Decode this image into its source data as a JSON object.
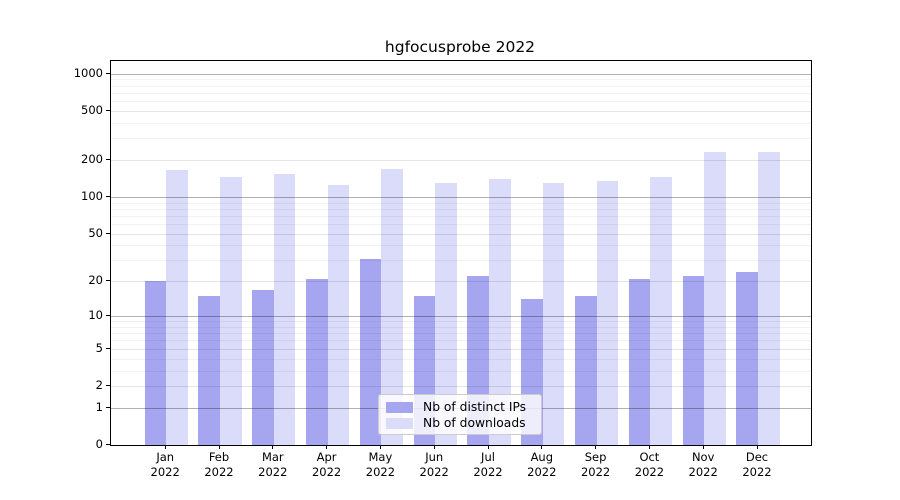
{
  "chart_data": {
    "type": "bar",
    "title": "hgfocusprobe 2022",
    "months": [
      "Jan",
      "Feb",
      "Mar",
      "Apr",
      "May",
      "Jun",
      "Jul",
      "Aug",
      "Sep",
      "Oct",
      "Nov",
      "Dec"
    ],
    "year_label": "2022",
    "categories": [
      "Jan 2022",
      "Feb 2022",
      "Mar 2022",
      "Apr 2022",
      "May 2022",
      "Jun 2022",
      "Jul 2022",
      "Aug 2022",
      "Sep 2022",
      "Oct 2022",
      "Nov 2022",
      "Dec 2022"
    ],
    "series": [
      {
        "name": "Nb of distinct IPs",
        "color": "#a6a6f0",
        "values": [
          20,
          15,
          17,
          21,
          31,
          15,
          22,
          14,
          15,
          21,
          22,
          24
        ]
      },
      {
        "name": "Nb of downloads",
        "color": "#dbdbfa",
        "values": [
          166,
          146,
          154,
          125,
          170,
          131,
          140,
          131,
          135,
          146,
          233,
          233
        ]
      }
    ],
    "yscale": "log1p",
    "y_ticks": [
      0,
      1,
      2,
      5,
      10,
      20,
      50,
      100,
      200,
      500,
      1000
    ],
    "y_decade_ticks": [
      1,
      10,
      100,
      1000
    ],
    "y_minor_gridlines": [
      3,
      4,
      6,
      7,
      8,
      9,
      30,
      40,
      60,
      70,
      80,
      90,
      300,
      400,
      600,
      700,
      800,
      900
    ],
    "ylim": [
      0,
      1264
    ],
    "xlabel": "",
    "ylabel": "",
    "grid": true,
    "legend_position": "lower center"
  },
  "legend": {
    "items": [
      {
        "label": "Nb of distinct IPs",
        "color": "#a6a6f0"
      },
      {
        "label": "Nb of downloads",
        "color": "#dbdbfa"
      }
    ]
  }
}
